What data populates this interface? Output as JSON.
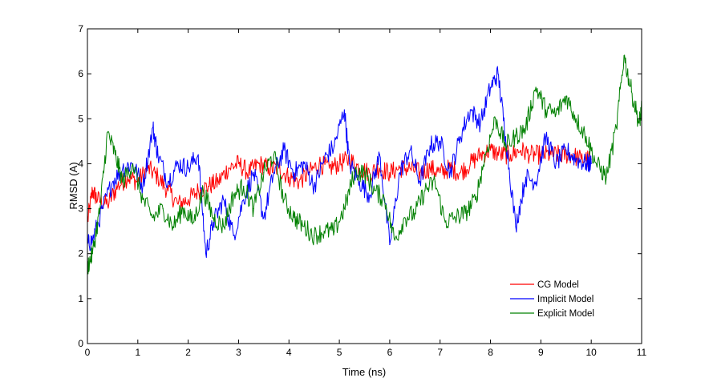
{
  "chart_data": {
    "type": "line",
    "title": "",
    "xlabel": "Time (ns)",
    "ylabel": "RMSD (A)",
    "xlim": [
      0,
      11
    ],
    "ylim": [
      0,
      7
    ],
    "xticks": [
      "0",
      "1",
      "2",
      "3",
      "4",
      "5",
      "6",
      "7",
      "8",
      "9",
      "10",
      "11"
    ],
    "yticks": [
      "0",
      "1",
      "2",
      "3",
      "4",
      "5",
      "6",
      "7"
    ],
    "grid": false,
    "legend_position": "bottom-right",
    "series": [
      {
        "name": "CG Model",
        "color": "#ff0000",
        "x": [
          0,
          0.1,
          0.2,
          0.4,
          0.6,
          0.8,
          1.0,
          1.2,
          1.4,
          1.6,
          1.8,
          2.0,
          2.2,
          2.4,
          2.6,
          2.8,
          3.0,
          3.2,
          3.4,
          3.6,
          3.8,
          4.0,
          4.2,
          4.4,
          4.6,
          4.8,
          5.0,
          5.2,
          5.4,
          5.6,
          5.8,
          6.0,
          6.2,
          6.4,
          6.6,
          6.8,
          7.0,
          7.2,
          7.4,
          7.6,
          7.8,
          8.0,
          8.2,
          8.4,
          8.6,
          8.8,
          9.0,
          9.2,
          9.4,
          9.6,
          9.8,
          10.0
        ],
        "y": [
          2.7,
          3.4,
          3.2,
          3.1,
          3.5,
          3.7,
          3.6,
          3.9,
          3.7,
          3.4,
          3.1,
          3.2,
          3.4,
          3.5,
          3.6,
          3.9,
          4.0,
          3.8,
          4.0,
          3.9,
          3.9,
          3.7,
          3.6,
          3.8,
          4.0,
          3.9,
          4.0,
          4.1,
          3.9,
          3.8,
          3.9,
          3.8,
          3.9,
          3.9,
          3.8,
          3.9,
          3.8,
          3.9,
          3.8,
          4.0,
          4.2,
          4.3,
          4.2,
          4.2,
          4.3,
          4.2,
          4.2,
          4.2,
          4.2,
          4.2,
          4.1,
          4.1
        ]
      },
      {
        "name": "Implicit Model",
        "color": "#0000ff",
        "x": [
          0,
          0.1,
          0.3,
          0.5,
          0.7,
          0.9,
          1.1,
          1.3,
          1.4,
          1.6,
          1.8,
          2.0,
          2.2,
          2.35,
          2.5,
          2.7,
          2.9,
          3.1,
          3.3,
          3.5,
          3.7,
          3.9,
          4.1,
          4.3,
          4.5,
          4.7,
          4.9,
          5.1,
          5.2,
          5.4,
          5.6,
          5.8,
          6.0,
          6.2,
          6.4,
          6.6,
          6.8,
          7.0,
          7.2,
          7.4,
          7.6,
          7.8,
          8.0,
          8.15,
          8.3,
          8.5,
          8.7,
          8.9,
          9.1,
          9.3,
          9.5,
          9.7,
          9.9,
          10.0
        ],
        "y": [
          2.2,
          2.3,
          3.0,
          3.6,
          3.9,
          4.0,
          3.5,
          4.8,
          4.2,
          3.6,
          4.0,
          3.9,
          4.2,
          2.0,
          2.7,
          3.2,
          2.4,
          3.2,
          3.8,
          2.8,
          3.8,
          4.3,
          3.8,
          4.0,
          3.5,
          4.1,
          4.4,
          5.2,
          4.0,
          3.6,
          3.3,
          4.2,
          2.2,
          3.8,
          4.3,
          3.6,
          4.4,
          4.5,
          3.8,
          4.6,
          5.2,
          4.9,
          5.7,
          6.0,
          4.6,
          2.6,
          3.7,
          3.6,
          4.6,
          4.0,
          4.3,
          4.1,
          4.0,
          4.0
        ]
      },
      {
        "name": "Explicit Model",
        "color": "#008000",
        "x": [
          0,
          0.1,
          0.25,
          0.4,
          0.55,
          0.7,
          0.9,
          1.1,
          1.3,
          1.5,
          1.7,
          1.9,
          2.1,
          2.3,
          2.5,
          2.7,
          2.9,
          3.1,
          3.3,
          3.5,
          3.7,
          3.9,
          4.1,
          4.3,
          4.5,
          4.7,
          4.9,
          5.1,
          5.3,
          5.5,
          5.7,
          5.9,
          6.1,
          6.3,
          6.5,
          6.7,
          6.9,
          7.1,
          7.3,
          7.5,
          7.7,
          7.9,
          8.1,
          8.3,
          8.5,
          8.7,
          8.9,
          9.1,
          9.3,
          9.5,
          9.7,
          9.9,
          10.1,
          10.3,
          10.5,
          10.65,
          10.8,
          10.95,
          11.0
        ],
        "y": [
          1.7,
          2.0,
          3.0,
          4.7,
          4.2,
          3.6,
          4.0,
          3.2,
          2.8,
          3.0,
          2.6,
          3.0,
          2.7,
          3.4,
          2.8,
          2.6,
          3.3,
          3.5,
          3.0,
          3.8,
          4.2,
          3.2,
          2.8,
          2.6,
          2.4,
          2.5,
          2.5,
          3.0,
          3.8,
          3.8,
          3.4,
          3.2,
          2.3,
          2.8,
          2.9,
          3.4,
          3.6,
          2.7,
          2.8,
          2.9,
          3.2,
          4.2,
          5.0,
          4.4,
          4.6,
          4.8,
          5.7,
          5.2,
          5.1,
          5.5,
          5.0,
          4.6,
          4.0,
          3.7,
          4.8,
          6.4,
          5.6,
          4.9,
          5.2
        ]
      }
    ]
  }
}
